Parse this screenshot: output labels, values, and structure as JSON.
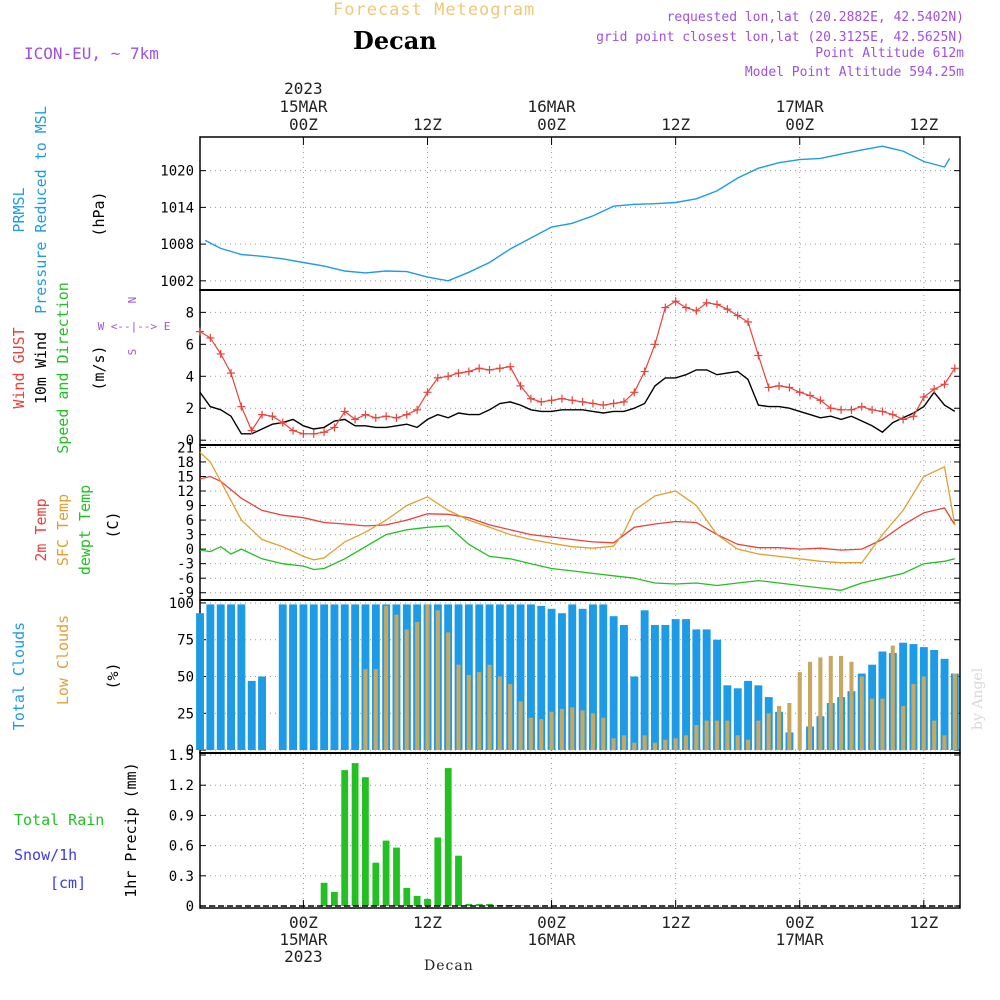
{
  "header": {
    "title": "Forecast Meteogram",
    "station": "Decan",
    "model": "ICON-EU, ~ 7km",
    "info": [
      "requested lon,lat (20.2882E, 42.5402N)",
      "grid point closest lon,lat (20.3125E, 42.5625N)",
      "Point Altitude 612m",
      "Model Point Altitude 594.25m"
    ],
    "footer_station": "Decan",
    "credit": "by Angel"
  },
  "time_axis": {
    "top_labels": [
      {
        "t": 0,
        "lines": [
          "2023",
          "15MAR",
          "00Z"
        ]
      },
      {
        "t": 12,
        "lines": [
          "12Z"
        ]
      },
      {
        "t": 24,
        "lines": [
          "16MAR",
          "00Z"
        ]
      },
      {
        "t": 36,
        "lines": [
          "12Z"
        ]
      },
      {
        "t": 48,
        "lines": [
          "17MAR",
          "00Z"
        ]
      },
      {
        "t": 60,
        "lines": [
          "12Z"
        ]
      }
    ],
    "bottom_labels": [
      {
        "t": 0,
        "lines": [
          "00Z",
          "15MAR",
          "2023"
        ]
      },
      {
        "t": 12,
        "lines": [
          "12Z"
        ]
      },
      {
        "t": 24,
        "lines": [
          "00Z",
          "16MAR"
        ]
      },
      {
        "t": 36,
        "lines": [
          "12Z"
        ]
      },
      {
        "t": 48,
        "lines": [
          "00Z",
          "17MAR"
        ]
      },
      {
        "t": 60,
        "lines": [
          "12Z"
        ]
      }
    ]
  },
  "colors": {
    "blue": "#1e9be6",
    "red": "#e8423a",
    "orange": "#e0a030",
    "green": "#22c022",
    "black": "#000000",
    "purple": "#a050e0",
    "cyan": "#20c8c8",
    "title": "#f0c878"
  },
  "panels": {
    "pressure": {
      "labels": [
        "PRMSL",
        "Pressure Reduced to MSL"
      ],
      "unit": "(hPa)"
    },
    "wind": {
      "labels": [
        "Wind GUST",
        "10m Wind",
        "Speed and Direction"
      ],
      "unit": "(m/s)",
      "compass": [
        "N",
        "W <--|--> E",
        "S"
      ]
    },
    "temp": {
      "labels": [
        "2m Temp",
        "SFC Temp",
        "dewpt Temp"
      ],
      "unit": "(C)"
    },
    "clouds": {
      "labels": [
        "Total Clouds",
        "Low Clouds"
      ],
      "unit": "(%)"
    },
    "precip": {
      "labels": [
        "Total  Rain",
        "Snow/1h",
        "[cm]"
      ],
      "unit": "1hr Precip (mm)"
    }
  },
  "chart_data": [
    {
      "type": "line",
      "ylabel": "(hPa)",
      "yticks": [
        1002,
        1008,
        1014,
        1020
      ],
      "ylim": [
        1000.5,
        1025.5
      ],
      "x_units": "hours from 15MAR 00Z",
      "series": [
        {
          "name": "PRMSL",
          "x": [
            -9.5,
            -8,
            -6,
            -4,
            -2,
            0,
            2,
            4,
            6,
            8,
            10,
            12,
            14,
            16,
            18,
            20,
            22,
            24,
            26,
            28,
            30,
            32,
            34,
            36,
            38,
            40,
            42,
            44,
            46,
            48,
            50,
            52,
            54,
            56,
            58,
            60,
            62,
            62.5
          ],
          "values": [
            1008.6,
            1007.3,
            1006.3,
            1006.0,
            1005.6,
            1005.0,
            1004.4,
            1003.6,
            1003.3,
            1003.6,
            1003.5,
            1002.6,
            1002.0,
            1003.4,
            1005.0,
            1007.2,
            1009.0,
            1010.8,
            1011.4,
            1012.6,
            1014.2,
            1014.5,
            1014.6,
            1014.8,
            1015.4,
            1016.7,
            1018.8,
            1020.4,
            1021.3,
            1021.8,
            1022.0,
            1022.7,
            1023.4,
            1024.0,
            1023.2,
            1021.5,
            1020.6,
            1022.0
          ]
        }
      ]
    },
    {
      "type": "line",
      "ylabel": "(m/s)",
      "yticks": [
        0,
        2,
        4,
        6,
        8
      ],
      "ylim": [
        -0.3,
        9.4
      ],
      "x_units": "hours from 15MAR 00Z",
      "series": [
        {
          "name": "Wind GUST",
          "x": [
            -10,
            -9,
            -8,
            -7,
            -6,
            -5,
            -4,
            -3,
            -2,
            -1,
            0,
            1,
            2,
            3,
            4,
            5,
            6,
            7,
            8,
            9,
            10,
            11,
            12,
            13,
            14,
            15,
            16,
            17,
            18,
            19,
            20,
            21,
            22,
            23,
            24,
            25,
            26,
            27,
            28,
            29,
            30,
            31,
            32,
            33,
            34,
            35,
            36,
            37,
            38,
            39,
            40,
            41,
            42,
            43,
            44,
            45,
            46,
            47,
            48,
            49,
            50,
            51,
            52,
            53,
            54,
            55,
            56,
            57,
            58,
            59,
            60,
            61,
            62,
            63
          ],
          "values": [
            6.8,
            6.4,
            5.4,
            4.2,
            2.1,
            0.6,
            1.6,
            1.5,
            1.1,
            0.6,
            0.4,
            0.4,
            0.5,
            0.8,
            1.8,
            1.3,
            1.6,
            1.4,
            1.5,
            1.4,
            1.6,
            1.9,
            3.0,
            3.9,
            4.0,
            4.2,
            4.3,
            4.5,
            4.4,
            4.5,
            4.6,
            3.4,
            2.6,
            2.4,
            2.5,
            2.6,
            2.5,
            2.4,
            2.3,
            2.2,
            2.3,
            2.4,
            3.0,
            4.3,
            6.0,
            8.3,
            8.7,
            8.3,
            8.1,
            8.6,
            8.5,
            8.2,
            7.8,
            7.4,
            5.3,
            3.3,
            3.4,
            3.3,
            3.0,
            2.8,
            2.5,
            2.0,
            1.9,
            1.9,
            2.1,
            1.9,
            1.8,
            1.6,
            1.3,
            1.5,
            2.7,
            3.2,
            3.5,
            4.5
          ]
        },
        {
          "name": "10m Wind",
          "x": [
            -10,
            -9,
            -8,
            -7,
            -6,
            -5,
            -4,
            -3,
            -2,
            -1,
            0,
            1,
            2,
            3,
            4,
            5,
            6,
            7,
            8,
            9,
            10,
            11,
            12,
            13,
            14,
            15,
            16,
            17,
            18,
            19,
            20,
            21,
            22,
            23,
            24,
            25,
            26,
            27,
            28,
            29,
            30,
            31,
            32,
            33,
            34,
            35,
            36,
            37,
            38,
            39,
            40,
            41,
            42,
            43,
            44,
            45,
            46,
            47,
            48,
            49,
            50,
            51,
            52,
            53,
            54,
            55,
            56,
            57,
            58,
            59,
            60,
            61,
            62,
            63
          ],
          "values": [
            3.0,
            2.1,
            1.9,
            1.5,
            0.4,
            0.4,
            0.7,
            1.0,
            1.1,
            1.3,
            0.9,
            0.7,
            0.8,
            1.2,
            1.3,
            0.9,
            0.9,
            0.8,
            0.8,
            0.9,
            1.0,
            0.8,
            1.3,
            1.6,
            1.4,
            1.7,
            1.6,
            1.6,
            1.9,
            2.3,
            2.4,
            2.2,
            1.9,
            1.8,
            1.8,
            1.9,
            1.9,
            1.9,
            1.8,
            1.7,
            1.8,
            1.8,
            2.0,
            2.3,
            3.4,
            3.9,
            3.9,
            4.1,
            4.4,
            4.4,
            4.1,
            4.2,
            4.3,
            3.8,
            2.2,
            2.1,
            2.1,
            2.0,
            1.8,
            1.6,
            1.4,
            1.5,
            1.3,
            1.5,
            1.2,
            0.9,
            0.5,
            1.1,
            1.4,
            1.7,
            2.1,
            3.0,
            2.2,
            1.8
          ]
        }
      ]
    },
    {
      "type": "line",
      "ylabel": "(C)",
      "yticks": [
        -9,
        -6,
        -3,
        0,
        3,
        6,
        9,
        12,
        15,
        18,
        21
      ],
      "ylim": [
        -10.5,
        21.5
      ],
      "x_units": "hours from 15MAR 00Z",
      "series": [
        {
          "name": "2m Temp",
          "x": [
            -10,
            -9,
            -8,
            -6,
            -4,
            -2,
            0,
            2,
            4,
            6,
            8,
            10,
            12,
            14,
            16,
            18,
            20,
            22,
            24,
            26,
            28,
            30,
            32,
            34,
            36,
            38,
            40,
            42,
            44,
            46,
            48,
            50,
            52,
            54,
            56,
            58,
            60,
            62,
            63
          ],
          "values": [
            14.5,
            15.0,
            14.0,
            10.5,
            8.0,
            7.0,
            6.5,
            5.5,
            5.2,
            4.8,
            5.0,
            6.0,
            7.3,
            7.2,
            6.5,
            5.0,
            4.0,
            3.0,
            2.5,
            2.0,
            1.5,
            1.3,
            4.5,
            5.2,
            5.7,
            5.5,
            3.0,
            1.0,
            0.3,
            0.3,
            0.0,
            0.2,
            -0.2,
            0.0,
            2.0,
            5.0,
            7.5,
            8.5,
            5.0
          ]
        },
        {
          "name": "SFC Temp",
          "x": [
            -10,
            -9,
            -8,
            -6,
            -4,
            -2,
            0,
            1,
            2,
            4,
            6,
            8,
            10,
            12,
            14,
            16,
            18,
            20,
            22,
            24,
            26,
            28,
            30,
            31,
            32,
            34,
            36,
            38,
            40,
            42,
            44,
            46,
            48,
            50,
            52,
            54,
            56,
            58,
            60,
            62,
            63
          ],
          "values": [
            20.0,
            18.0,
            14.0,
            6.0,
            2.0,
            0.5,
            -1.5,
            -2.2,
            -1.8,
            1.5,
            3.5,
            6.0,
            9.0,
            10.8,
            8.0,
            6.0,
            4.5,
            3.0,
            2.0,
            1.2,
            0.5,
            0.2,
            0.6,
            3.5,
            8.0,
            11.0,
            12.0,
            9.0,
            3.0,
            0.0,
            -1.0,
            -1.5,
            -2.0,
            -2.5,
            -2.8,
            -2.8,
            3.0,
            8.0,
            15.0,
            17.0,
            5.0
          ]
        },
        {
          "name": "dewpt Temp",
          "x": [
            -10,
            -9,
            -8,
            -7,
            -6,
            -4,
            -2,
            0,
            1,
            2,
            4,
            6,
            8,
            10,
            12,
            14,
            16,
            18,
            20,
            22,
            24,
            26,
            28,
            30,
            32,
            34,
            36,
            38,
            40,
            42,
            44,
            46,
            48,
            50,
            52,
            54,
            56,
            58,
            60,
            62,
            63
          ],
          "values": [
            -0.2,
            -0.5,
            0.5,
            -1.0,
            0.0,
            -2.0,
            -3.0,
            -3.5,
            -4.2,
            -4.0,
            -2.0,
            0.5,
            3.0,
            4.0,
            4.5,
            4.8,
            1.0,
            -1.5,
            -2.0,
            -3.0,
            -4.0,
            -4.5,
            -5.0,
            -5.5,
            -6.0,
            -7.0,
            -7.2,
            -7.0,
            -7.5,
            -7.0,
            -6.5,
            -7.0,
            -7.5,
            -8.0,
            -8.5,
            -7.0,
            -6.0,
            -5.0,
            -3.0,
            -2.5,
            -2.0
          ]
        }
      ]
    },
    {
      "type": "bar",
      "ylabel": "(%)",
      "yticks": [
        0,
        25,
        50,
        75,
        100
      ],
      "ylim": [
        -2,
        102
      ],
      "x_units": "hours from 15MAR 00Z",
      "x": [
        -10,
        -9,
        -8,
        -7,
        -6,
        -5,
        -4,
        -3,
        -2,
        -1,
        0,
        1,
        2,
        3,
        4,
        5,
        6,
        7,
        8,
        9,
        10,
        11,
        12,
        13,
        14,
        15,
        16,
        17,
        18,
        19,
        20,
        21,
        22,
        23,
        24,
        25,
        26,
        27,
        28,
        29,
        30,
        31,
        32,
        33,
        34,
        35,
        36,
        37,
        38,
        39,
        40,
        41,
        42,
        43,
        44,
        45,
        46,
        47,
        48,
        49,
        50,
        51,
        52,
        53,
        54,
        55,
        56,
        57,
        58,
        59,
        60,
        61,
        62,
        63
      ],
      "series": [
        {
          "name": "Total Clouds",
          "values": [
            93,
            99,
            99,
            99,
            99,
            47,
            50,
            0,
            99,
            99,
            99,
            99,
            99,
            99,
            99,
            99,
            99,
            99,
            99,
            99,
            99,
            99,
            99,
            99,
            99,
            99,
            99,
            99,
            99,
            99,
            99,
            99,
            99,
            98,
            96,
            93,
            99,
            96,
            99,
            99,
            91,
            85,
            50,
            95,
            85,
            85,
            89,
            89,
            82,
            82,
            75,
            44,
            42,
            47,
            44,
            36,
            26,
            12,
            0,
            16,
            23,
            32,
            36,
            40,
            52,
            58,
            67,
            66,
            73,
            72,
            70,
            68,
            62,
            52
          ]
        },
        {
          "name": "Low Clouds",
          "values": [
            0,
            0,
            0,
            0,
            0,
            0,
            0,
            0,
            0,
            0,
            0,
            0,
            0,
            0,
            0,
            0,
            55,
            55,
            98,
            92,
            82,
            87,
            99,
            95,
            80,
            58,
            51,
            53,
            58,
            50,
            45,
            33,
            22,
            21,
            26,
            28,
            29,
            27,
            25,
            22,
            8,
            10,
            5,
            10,
            5,
            7,
            8,
            10,
            17,
            20,
            20,
            20,
            10,
            7,
            20,
            25,
            30,
            32,
            53,
            60,
            63,
            64,
            64,
            60,
            50,
            35,
            35,
            71,
            30,
            45,
            50,
            20,
            10,
            52
          ]
        }
      ]
    },
    {
      "type": "bar",
      "ylabel": "1hr Precip (mm)",
      "yticks": [
        0,
        0.3,
        0.6,
        0.9,
        1.2,
        1.5
      ],
      "ylim": [
        -0.02,
        1.52
      ],
      "x_units": "hours from 15MAR 00Z",
      "x": [
        2,
        3,
        4,
        5,
        6,
        7,
        8,
        9,
        10,
        11,
        12,
        13,
        14,
        15,
        16,
        17,
        18,
        19,
        20,
        21
      ],
      "series": [
        {
          "name": "Total Rain",
          "values": [
            0.23,
            0.14,
            1.35,
            1.42,
            1.28,
            0.43,
            0.65,
            0.58,
            0.18,
            0.1,
            0.07,
            0.68,
            1.37,
            0.5,
            0.02,
            0.02,
            0.02,
            0.01,
            0.01,
            0.005
          ]
        }
      ]
    }
  ]
}
